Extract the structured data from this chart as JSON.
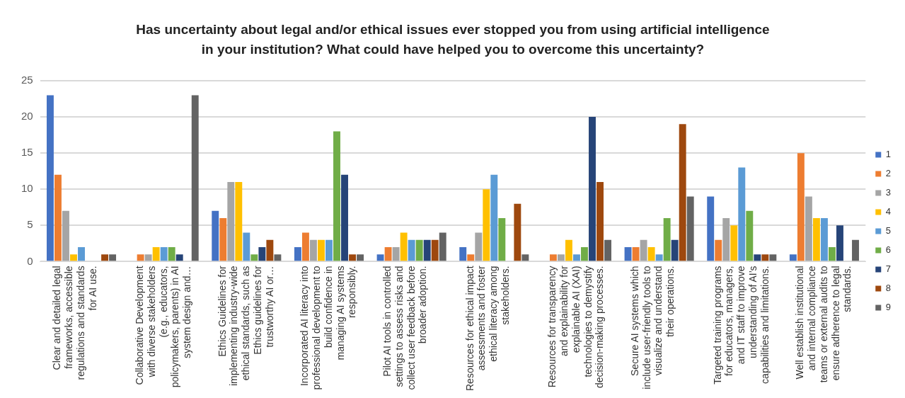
{
  "chart_data": {
    "type": "bar",
    "title": "Has uncertainty about legal and/or ethical issues ever stopped you from using artificial intelligence in your institution? What could have helped you to overcome this uncertainty?",
    "categories": [
      "Clear and detailed legal frameworks, accessible regulations and standards for AI use.",
      "Collaborative Development with diverse stakeholders (e.g., educators, policymakers, parents) in AI system design and…",
      "Ethics Guidelines for implementing industry-wide ethical standards, such as Ethics guidelines for trustworthy AI or…",
      "Incorporated AI literacy into professional development to build confidence in managing AI systems responsibly.",
      "Pilot AI tools in controlled settings to assess risks and collect user feedback before broader adoption.",
      "Resources for ethical impact assessments and foster ethical literacy among stakeholders.",
      "Resources for transparency and explainability for explainable AI (XAI) technologies to demystify decision-making processes.",
      "Secure AI systems which include user-friendly tools to visualize and understand their operations.",
      "Targeted training programs for educators, managers, and IT staff to improve understanding of AI’s capabilities and limitations.",
      "Well establish institutional and internal compliance teams or external audits to ensure adherence to legal standards."
    ],
    "series": [
      {
        "name": "1",
        "color": "#4472c4",
        "values": [
          23,
          0,
          7,
          2,
          1,
          2,
          0,
          2,
          9,
          1
        ]
      },
      {
        "name": "2",
        "color": "#ed7d31",
        "values": [
          12,
          1,
          6,
          4,
          2,
          1,
          1,
          2,
          3,
          15
        ]
      },
      {
        "name": "3",
        "color": "#a5a5a5",
        "values": [
          7,
          1,
          11,
          3,
          2,
          4,
          1,
          3,
          6,
          9
        ]
      },
      {
        "name": "4",
        "color": "#ffc000",
        "values": [
          1,
          2,
          11,
          3,
          4,
          10,
          3,
          2,
          5,
          6
        ]
      },
      {
        "name": "5",
        "color": "#5b9bd5",
        "values": [
          2,
          2,
          4,
          3,
          3,
          12,
          1,
          1,
          13,
          6
        ]
      },
      {
        "name": "6",
        "color": "#70ad47",
        "values": [
          0,
          2,
          1,
          18,
          3,
          6,
          2,
          6,
          7,
          2
        ]
      },
      {
        "name": "7",
        "color": "#264478",
        "values": [
          0,
          1,
          2,
          12,
          3,
          0,
          20,
          3,
          1,
          5
        ]
      },
      {
        "name": "8",
        "color": "#9e480e",
        "values": [
          1,
          0,
          3,
          1,
          3,
          8,
          11,
          19,
          1,
          0
        ]
      },
      {
        "name": "9",
        "color": "#636363",
        "values": [
          1,
          23,
          1,
          1,
          4,
          1,
          3,
          9,
          1,
          3
        ]
      }
    ],
    "ylim": [
      0,
      25
    ],
    "yticks": [
      0,
      5,
      10,
      15,
      20,
      25
    ],
    "grid": "y",
    "legend": "right"
  }
}
